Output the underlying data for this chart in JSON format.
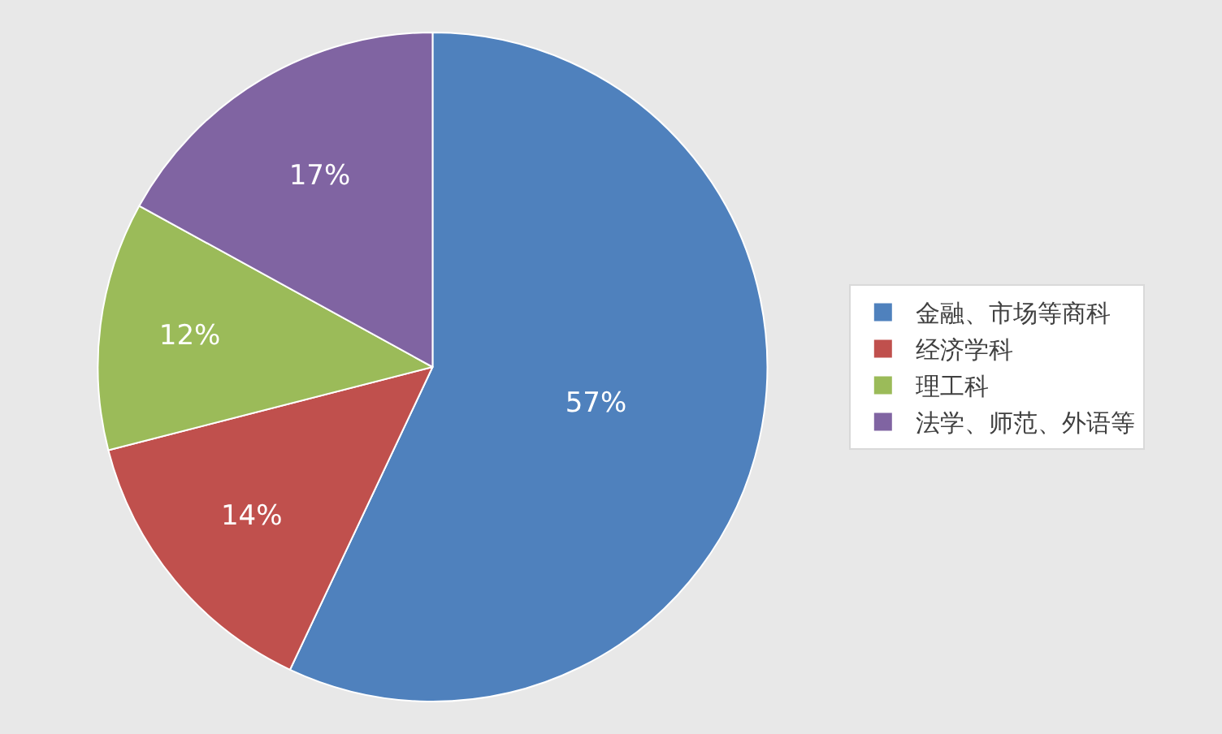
{
  "chart_data": {
    "type": "pie",
    "categories": [
      "金融、市场等商科",
      "经济学科",
      "理工科",
      "法学、师范、外语等"
    ],
    "values": [
      57,
      14,
      12,
      17
    ],
    "colors": [
      "#4f81bd",
      "#c0504d",
      "#9bbb59",
      "#8064a2"
    ],
    "value_labels": [
      "57%",
      "14%",
      "12%",
      "17%"
    ],
    "legend": "right"
  }
}
